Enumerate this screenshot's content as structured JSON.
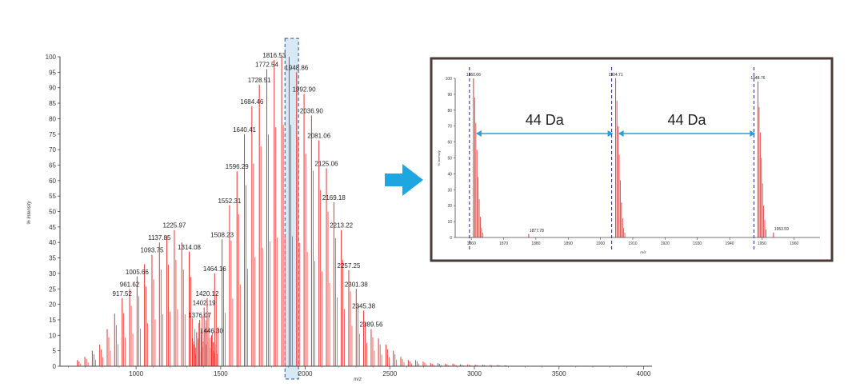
{
  "chart_data": [
    {
      "type": "bar",
      "xlabel": "m/z",
      "ylabel": "% Intensity",
      "xlim": [
        550,
        4050
      ],
      "ylim": [
        0,
        100
      ],
      "xticks": [
        "1000",
        "1500",
        "2000",
        "2500",
        "3000",
        "3500",
        "4000"
      ],
      "yticks": [
        "0",
        "5",
        "10",
        "15",
        "20",
        "25",
        "30",
        "35",
        "40",
        "45",
        "50",
        "55",
        "60",
        "65",
        "70",
        "75",
        "80",
        "85",
        "90",
        "95",
        "100"
      ],
      "highlight_range": [
        1880,
        1960
      ],
      "colors": {
        "peaks": "#e8322d",
        "highlight_fill": "#d6e9f5",
        "highlight_border": "#2d4a7a"
      },
      "labeled_peaks": [
        {
          "x": 917.52,
          "y": 22,
          "label": "917.52"
        },
        {
          "x": 961.62,
          "y": 25,
          "label": "961.62"
        },
        {
          "x": 1005.66,
          "y": 29,
          "label": "1005.66"
        },
        {
          "x": 1093.75,
          "y": 36,
          "label": "1093.75"
        },
        {
          "x": 1137.85,
          "y": 40,
          "label": "1137.85"
        },
        {
          "x": 1225.97,
          "y": 44,
          "label": "1225.97"
        },
        {
          "x": 1314.08,
          "y": 37,
          "label": "1314.08"
        },
        {
          "x": 1376.07,
          "y": 15,
          "label": "1376.07"
        },
        {
          "x": 1402.19,
          "y": 19,
          "label": "1402.19"
        },
        {
          "x": 1420.12,
          "y": 22,
          "label": "1420.12"
        },
        {
          "x": 1446.3,
          "y": 10,
          "label": "1446.30"
        },
        {
          "x": 1464.16,
          "y": 30,
          "label": "1464.16"
        },
        {
          "x": 1508.23,
          "y": 41,
          "label": "1508.23"
        },
        {
          "x": 1552.31,
          "y": 52,
          "label": "1552.31"
        },
        {
          "x": 1596.29,
          "y": 63,
          "label": "1596.29"
        },
        {
          "x": 1640.41,
          "y": 75,
          "label": "1640.41"
        },
        {
          "x": 1684.46,
          "y": 84,
          "label": "1684.46"
        },
        {
          "x": 1728.51,
          "y": 91,
          "label": "1728.51"
        },
        {
          "x": 1772.54,
          "y": 96,
          "label": "1772.54"
        },
        {
          "x": 1816.53,
          "y": 99,
          "label": "1816.53"
        },
        {
          "x": 1948.86,
          "y": 95,
          "label": "1948.86"
        },
        {
          "x": 1992.9,
          "y": 88,
          "label": "1992.90"
        },
        {
          "x": 2036.9,
          "y": 81,
          "label": "2036.90"
        },
        {
          "x": 2081.06,
          "y": 73,
          "label": "2081.06"
        },
        {
          "x": 2125.06,
          "y": 64,
          "label": "2125.06"
        },
        {
          "x": 2169.18,
          "y": 53,
          "label": "2169.18"
        },
        {
          "x": 2213.22,
          "y": 44,
          "label": "2213.22"
        },
        {
          "x": 2257.25,
          "y": 31,
          "label": "2257.25"
        },
        {
          "x": 2301.38,
          "y": 25,
          "label": "2301.38"
        },
        {
          "x": 2345.38,
          "y": 18,
          "label": "2345.38"
        },
        {
          "x": 2389.56,
          "y": 12,
          "label": "2389.56"
        }
      ],
      "unlabeled_peaks": [
        {
          "x": 653,
          "y": 2
        },
        {
          "x": 697,
          "y": 3
        },
        {
          "x": 741,
          "y": 5
        },
        {
          "x": 785,
          "y": 7
        },
        {
          "x": 829,
          "y": 12
        },
        {
          "x": 873,
          "y": 17
        },
        {
          "x": 1049.7,
          "y": 33
        },
        {
          "x": 1181.9,
          "y": 42
        },
        {
          "x": 1270,
          "y": 40
        },
        {
          "x": 1333,
          "y": 9
        },
        {
          "x": 1358,
          "y": 11
        },
        {
          "x": 1860.66,
          "y": 100
        },
        {
          "x": 1904.71,
          "y": 100
        },
        {
          "x": 2433,
          "y": 9
        },
        {
          "x": 2477,
          "y": 7
        },
        {
          "x": 2521,
          "y": 5
        },
        {
          "x": 2565,
          "y": 3
        },
        {
          "x": 2609,
          "y": 2
        },
        {
          "x": 2653,
          "y": 2
        },
        {
          "x": 2697,
          "y": 1.5
        },
        {
          "x": 2741,
          "y": 1
        },
        {
          "x": 2785,
          "y": 1
        },
        {
          "x": 2829,
          "y": 0.8
        },
        {
          "x": 2873,
          "y": 0.8
        },
        {
          "x": 2917,
          "y": 0.6
        },
        {
          "x": 2961,
          "y": 0.6
        },
        {
          "x": 3005,
          "y": 0.5
        },
        {
          "x": 3049,
          "y": 0.5
        },
        {
          "x": 3093,
          "y": 0.4
        },
        {
          "x": 3137,
          "y": 0.4
        },
        {
          "x": 3181,
          "y": 0.3
        }
      ]
    },
    {
      "type": "bar",
      "xlabel": "m/z",
      "ylabel": "% Intensity",
      "xlim": [
        1855,
        1968
      ],
      "ylim": [
        0,
        100
      ],
      "xticks": [
        "1860",
        "1870",
        "1880",
        "1890",
        "1900",
        "1910",
        "1920",
        "1930",
        "1940",
        "1950",
        "1960"
      ],
      "yticks": [
        "0",
        "10",
        "20",
        "30",
        "40",
        "50",
        "60",
        "70",
        "80",
        "90",
        "100"
      ],
      "marker_lines": [
        1860.66,
        1904.71,
        1948.76
      ],
      "colors": {
        "peaks": "#e8322d",
        "marker_lines": "#1a2a8a",
        "arrow": "#2aa0d8",
        "frame": "#4a3b36"
      },
      "labeled_peaks": [
        {
          "x": 1860.66,
          "y": 100,
          "label": "1860.66"
        },
        {
          "x": 1877.78,
          "y": 2,
          "label": "1877.78"
        },
        {
          "x": 1904.71,
          "y": 100,
          "label": "1904.71"
        },
        {
          "x": 1948.76,
          "y": 98,
          "label": "1948.76"
        },
        {
          "x": 1953.59,
          "y": 3,
          "label": "1953.59"
        }
      ],
      "isotope_envelope": [
        {
          "x": 1861.05,
          "y": 88
        },
        {
          "x": 1861.4,
          "y": 72
        },
        {
          "x": 1861.75,
          "y": 55
        },
        {
          "x": 1862.1,
          "y": 38
        },
        {
          "x": 1862.45,
          "y": 24
        },
        {
          "x": 1862.8,
          "y": 13
        },
        {
          "x": 1863.15,
          "y": 6
        },
        {
          "x": 1863.5,
          "y": 3
        },
        {
          "x": 1905.1,
          "y": 86
        },
        {
          "x": 1905.45,
          "y": 70
        },
        {
          "x": 1905.8,
          "y": 52
        },
        {
          "x": 1906.15,
          "y": 36
        },
        {
          "x": 1906.5,
          "y": 22
        },
        {
          "x": 1906.85,
          "y": 12
        },
        {
          "x": 1907.2,
          "y": 6
        },
        {
          "x": 1907.55,
          "y": 3
        },
        {
          "x": 1949.15,
          "y": 82
        },
        {
          "x": 1949.5,
          "y": 66
        },
        {
          "x": 1949.85,
          "y": 50
        },
        {
          "x": 1950.2,
          "y": 34
        },
        {
          "x": 1950.55,
          "y": 20
        },
        {
          "x": 1950.9,
          "y": 11
        },
        {
          "x": 1951.25,
          "y": 5
        }
      ],
      "annotations": [
        {
          "text": "44 Da",
          "from": 1860.66,
          "to": 1904.71
        },
        {
          "text": "44 Da",
          "from": 1904.71,
          "to": 1948.76
        }
      ]
    }
  ]
}
